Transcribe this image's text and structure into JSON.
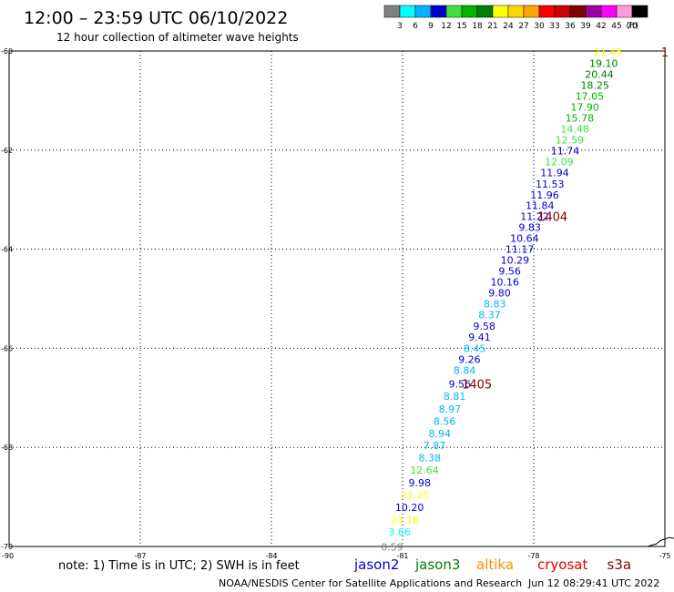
{
  "header": {
    "title": "12:00 – 23:59 UTC 06/10/2022",
    "subtitle": "12 hour collection of altimeter wave heights"
  },
  "legend": {
    "unit": "(ft)",
    "bins": [
      {
        "label": "3",
        "color": "#808080"
      },
      {
        "label": "6",
        "color": "#00ffff"
      },
      {
        "label": "9",
        "color": "#00b4ff"
      },
      {
        "label": "12",
        "color": "#0000cd"
      },
      {
        "label": "15",
        "color": "#40e040"
      },
      {
        "label": "18",
        "color": "#00b400"
      },
      {
        "label": "21",
        "color": "#008000"
      },
      {
        "label": "24",
        "color": "#ffff00"
      },
      {
        "label": "27",
        "color": "#ffd700"
      },
      {
        "label": "30",
        "color": "#ffa500"
      },
      {
        "label": "33",
        "color": "#ff0000"
      },
      {
        "label": "36",
        "color": "#cc0000"
      },
      {
        "label": "39",
        "color": "#800000"
      },
      {
        "label": "42",
        "color": "#a000a0"
      },
      {
        "label": "45",
        "color": "#ff00ff"
      },
      {
        "label": "70",
        "color": "#ff99dd"
      },
      {
        "label": "",
        "color": "#000000"
      }
    ]
  },
  "chart_data": {
    "type": "scatter",
    "title": "12:00 – 23:59 UTC 06/10/2022",
    "xlim": [
      -90,
      -75
    ],
    "ylim": [
      -70,
      -60
    ],
    "x_ticks": [
      -87,
      -84,
      -81,
      -78,
      -75
    ],
    "y_ticks": [
      -60,
      -62,
      -64,
      -66,
      -68,
      -70
    ],
    "x_tick_labels": [
      "-87",
      "-84",
      "-81",
      "-78",
      "-75"
    ],
    "y_tick_labels": [
      "-60",
      "-62",
      "-64",
      "-66",
      "-68",
      "-70"
    ],
    "x_corner_label": "-90",
    "grid": true,
    "points": [
      {
        "x": -76.3,
        "y": -60.02,
        "value": "21.45",
        "color": "#ffff00"
      },
      {
        "x": -76.4,
        "y": -60.25,
        "value": "19.10",
        "color": "#008000"
      },
      {
        "x": -76.5,
        "y": -60.47,
        "value": "20.44",
        "color": "#008000"
      },
      {
        "x": -76.6,
        "y": -60.69,
        "value": "18.25",
        "color": "#008000"
      },
      {
        "x": -76.72,
        "y": -60.91,
        "value": "17.05",
        "color": "#00b400"
      },
      {
        "x": -76.83,
        "y": -61.13,
        "value": "17.90",
        "color": "#00b400"
      },
      {
        "x": -76.95,
        "y": -61.35,
        "value": "15.78",
        "color": "#00b400"
      },
      {
        "x": -77.06,
        "y": -61.57,
        "value": "14.48",
        "color": "#40e040"
      },
      {
        "x": -77.18,
        "y": -61.79,
        "value": "12.59",
        "color": "#40e040"
      },
      {
        "x": -77.28,
        "y": -62.01,
        "value": "11.74",
        "color": "#0000cd"
      },
      {
        "x": -77.42,
        "y": -62.23,
        "value": "12.09",
        "color": "#40e040"
      },
      {
        "x": -77.52,
        "y": -62.45,
        "value": "11.94",
        "color": "#0000cd"
      },
      {
        "x": -77.63,
        "y": -62.68,
        "value": "11.53",
        "color": "#0000cd"
      },
      {
        "x": -77.75,
        "y": -62.9,
        "value": "11.96",
        "color": "#0000cd"
      },
      {
        "x": -77.86,
        "y": -63.12,
        "value": "11.84",
        "color": "#0000cd"
      },
      {
        "x": -77.98,
        "y": -63.34,
        "value": "11.22",
        "color": "#0000cd"
      },
      {
        "x": -78.09,
        "y": -63.56,
        "value": "9.83",
        "color": "#0000cd"
      },
      {
        "x": -78.21,
        "y": -63.78,
        "value": "10.64",
        "color": "#0000cd"
      },
      {
        "x": -78.32,
        "y": -64.0,
        "value": "11.17",
        "color": "#0000cd"
      },
      {
        "x": -78.43,
        "y": -64.22,
        "value": "10.29",
        "color": "#0000cd"
      },
      {
        "x": -78.55,
        "y": -64.44,
        "value": "9.56",
        "color": "#0000cd"
      },
      {
        "x": -78.66,
        "y": -64.66,
        "value": "10.16",
        "color": "#0000cd"
      },
      {
        "x": -78.78,
        "y": -64.88,
        "value": "9.80",
        "color": "#0000cd"
      },
      {
        "x": -78.89,
        "y": -65.1,
        "value": "8.83",
        "color": "#00b4ff"
      },
      {
        "x": -79.01,
        "y": -65.32,
        "value": "8.37",
        "color": "#00b4ff"
      },
      {
        "x": -79.13,
        "y": -65.55,
        "value": "9.58",
        "color": "#0000cd"
      },
      {
        "x": -79.24,
        "y": -65.77,
        "value": "9.41",
        "color": "#0000cd"
      },
      {
        "x": -79.35,
        "y": -66.0,
        "value": "8.45",
        "color": "#00b4ff"
      },
      {
        "x": -79.47,
        "y": -66.22,
        "value": "9.26",
        "color": "#0000cd"
      },
      {
        "x": -79.58,
        "y": -66.44,
        "value": "8.84",
        "color": "#00b4ff"
      },
      {
        "x": -79.69,
        "y": -66.72,
        "value": "9.56",
        "color": "#0000cd"
      },
      {
        "x": -79.81,
        "y": -66.97,
        "value": "8.81",
        "color": "#00b4ff"
      },
      {
        "x": -79.92,
        "y": -67.22,
        "value": "8.97",
        "color": "#00b4ff"
      },
      {
        "x": -80.04,
        "y": -67.47,
        "value": "8.56",
        "color": "#00b4ff"
      },
      {
        "x": -80.15,
        "y": -67.72,
        "value": "8.94",
        "color": "#00b4ff"
      },
      {
        "x": -80.27,
        "y": -67.96,
        "value": "7.87",
        "color": "#00b4ff"
      },
      {
        "x": -80.38,
        "y": -68.21,
        "value": "8.38",
        "color": "#00b4ff"
      },
      {
        "x": -80.5,
        "y": -68.46,
        "value": "12.64",
        "color": "#40e040"
      },
      {
        "x": -80.61,
        "y": -68.71,
        "value": "9.98",
        "color": "#0000cd"
      },
      {
        "x": -80.72,
        "y": -68.96,
        "value": "21.25",
        "color": "#ffff00"
      },
      {
        "x": -80.84,
        "y": -69.21,
        "value": "10.20",
        "color": "#0000cd"
      },
      {
        "x": -80.95,
        "y": -69.46,
        "value": "23.16",
        "color": "#ffff00"
      },
      {
        "x": -81.07,
        "y": -69.71,
        "value": "3.66",
        "color": "#00ffff"
      },
      {
        "x": -81.24,
        "y": -70.01,
        "value": "0.59",
        "color": "#808080"
      }
    ],
    "annotations": [
      {
        "x": -77.57,
        "y": -63.34,
        "text": "1404",
        "color": "#800000"
      },
      {
        "x": -79.3,
        "y": -66.72,
        "text": "1405",
        "color": "#800000"
      },
      {
        "x": -75.0,
        "y": -60.02,
        "text": "1",
        "color": "#800000"
      }
    ],
    "coastline": [
      [
        -75.4,
        -70.0
      ],
      [
        -75.2,
        -69.95
      ],
      [
        -75.1,
        -69.88
      ],
      [
        -74.9,
        -69.82
      ],
      [
        -74.6,
        -69.86
      ]
    ]
  },
  "footer": {
    "note": "note:  1) Time is in UTC;  2) SWH is in feet",
    "satellites": [
      {
        "name": "jason2",
        "color": "#0000cd"
      },
      {
        "name": "jason3",
        "color": "#008000"
      },
      {
        "name": "altika",
        "color": "#ff8c00"
      },
      {
        "name": "cryosat",
        "color": "#e00000"
      },
      {
        "name": "s3a",
        "color": "#800000"
      }
    ],
    "credit": "NOAA/NESDIS Center for Satellite Applications and Research",
    "timestamp": "Jun 12 08:29:41 UTC 2022"
  }
}
